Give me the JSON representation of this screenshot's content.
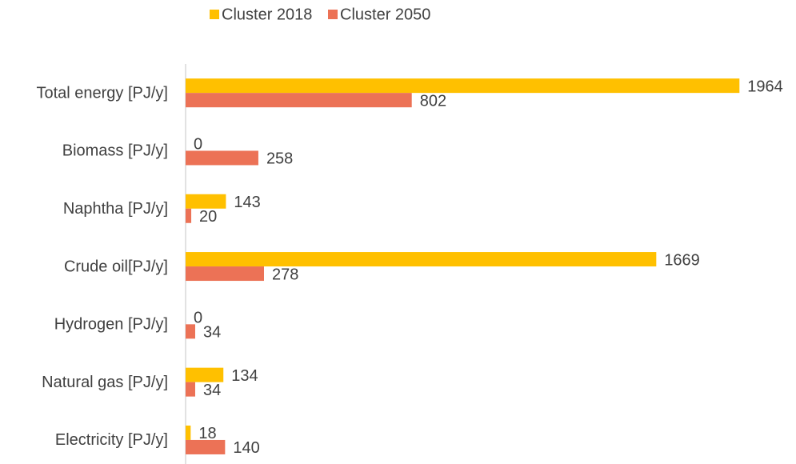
{
  "chart_data": {
    "type": "hbar",
    "categories": [
      "Total energy [PJ/y]",
      "Biomass [PJ/y]",
      "Naphtha [PJ/y]",
      "Crude oil[PJ/y]",
      "Hydrogen [PJ/y]",
      "Natural gas [PJ/y]",
      "Electricity [PJ/y]"
    ],
    "series": [
      {
        "name": "Cluster 2018",
        "color": "#FFC000",
        "values": [
          1964,
          0,
          143,
          1669,
          0,
          134,
          18
        ]
      },
      {
        "name": "Cluster 2050",
        "color": "#EC7256",
        "values": [
          802,
          258,
          20,
          278,
          34,
          34,
          140
        ]
      }
    ],
    "xlim": [
      0,
      2000
    ],
    "legend": "top"
  }
}
